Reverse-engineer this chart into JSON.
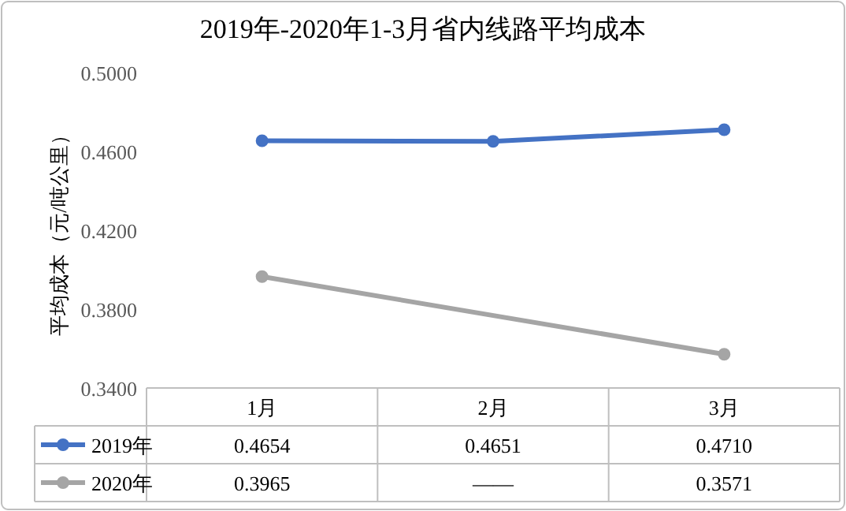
{
  "chart_data": {
    "type": "line",
    "title": "2019年-2020年1-3月省内线路平均成本",
    "ylabel": "平均成本（元/吨公里）",
    "categories": [
      "1月",
      "2月",
      "3月"
    ],
    "series": [
      {
        "name": "2019年",
        "color": "#4472c4",
        "values": [
          0.4654,
          0.4651,
          0.471
        ],
        "value_labels": [
          "0.4654",
          "0.4651",
          "0.4710"
        ]
      },
      {
        "name": "2020年",
        "color": "#a5a5a5",
        "values": [
          0.3965,
          null,
          0.3571
        ],
        "value_labels": [
          "0.3965",
          "——",
          "0.3571"
        ]
      }
    ],
    "ylim": [
      0.34,
      0.5
    ],
    "yticks": [
      {
        "value": 0.34,
        "label": "0.3400"
      },
      {
        "value": 0.38,
        "label": "0.3800"
      },
      {
        "value": 0.42,
        "label": "0.4200"
      },
      {
        "value": 0.46,
        "label": "0.4600"
      },
      {
        "value": 0.5,
        "label": "0.5000"
      }
    ],
    "marker": "circle",
    "legend": "bottom"
  }
}
